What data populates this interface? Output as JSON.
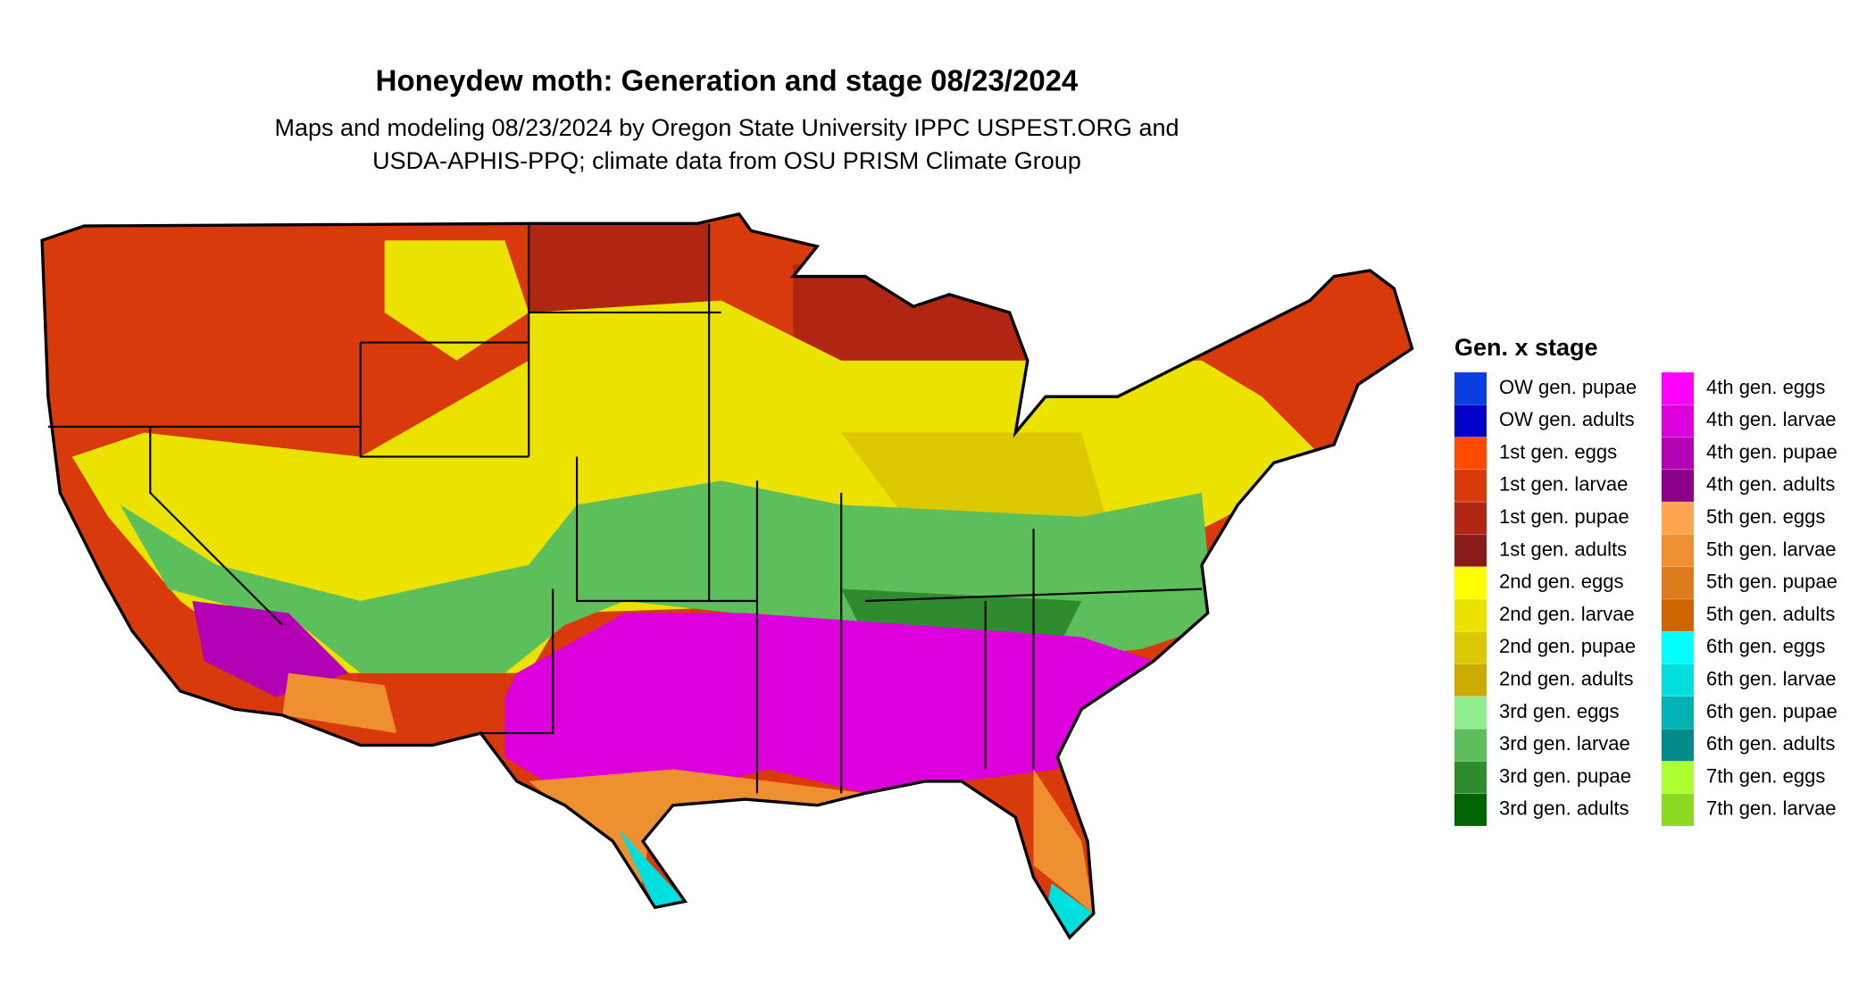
{
  "header": {
    "title": "Honeydew moth: Generation and stage 08/23/2024",
    "subtitle": [
      "Maps and modeling 08/23/2024 by Oregon State University IPPC USPEST.ORG and",
      "USDA-APHIS-PPQ; climate data from OSU PRISM Climate Group"
    ]
  },
  "legend": {
    "title": "Gen. x stage",
    "items": [
      {
        "label": "OW gen. pupae",
        "color": "#0a3ee0"
      },
      {
        "label": "OW gen. adults",
        "color": "#0000c8"
      },
      {
        "label": "1st gen. eggs",
        "color": "#ff4a00"
      },
      {
        "label": "1st gen. larvae",
        "color": "#d83a0c"
      },
      {
        "label": "1st gen. pupae",
        "color": "#b02612"
      },
      {
        "label": "1st gen. adults",
        "color": "#8b1a1a"
      },
      {
        "label": "2nd gen. eggs",
        "color": "#ffff00"
      },
      {
        "label": "2nd gen. larvae",
        "color": "#ebe200"
      },
      {
        "label": "2nd gen. pupae",
        "color": "#dcc800"
      },
      {
        "label": "2nd gen. adults",
        "color": "#ccaa00"
      },
      {
        "label": "3rd gen. eggs",
        "color": "#90ee90"
      },
      {
        "label": "3rd gen. larvae",
        "color": "#5cbf5c"
      },
      {
        "label": "3rd gen. pupae",
        "color": "#2e8b2e"
      },
      {
        "label": "3rd gen. adults",
        "color": "#006400"
      },
      {
        "label": "4th gen. eggs",
        "color": "#ff00ff"
      },
      {
        "label": "4th gen. larvae",
        "color": "#dd00dd"
      },
      {
        "label": "4th gen. pupae",
        "color": "#b400b4"
      },
      {
        "label": "4th gen. adults",
        "color": "#8b008b"
      },
      {
        "label": "5th gen. eggs",
        "color": "#ffa54f"
      },
      {
        "label": "5th gen. larvae",
        "color": "#ee9030"
      },
      {
        "label": "5th gen. pupae",
        "color": "#dc7a1c"
      },
      {
        "label": "5th gen. adults",
        "color": "#cd6600"
      },
      {
        "label": "6th gen. eggs",
        "color": "#00ffff"
      },
      {
        "label": "6th gen. larvae",
        "color": "#00dede"
      },
      {
        "label": "6th gen. pupae",
        "color": "#00b2b2"
      },
      {
        "label": "6th gen. adults",
        "color": "#008b8b"
      },
      {
        "label": "7th gen. eggs",
        "color": "#adff2f"
      },
      {
        "label": "7th gen. larvae",
        "color": "#8ad820"
      }
    ]
  }
}
